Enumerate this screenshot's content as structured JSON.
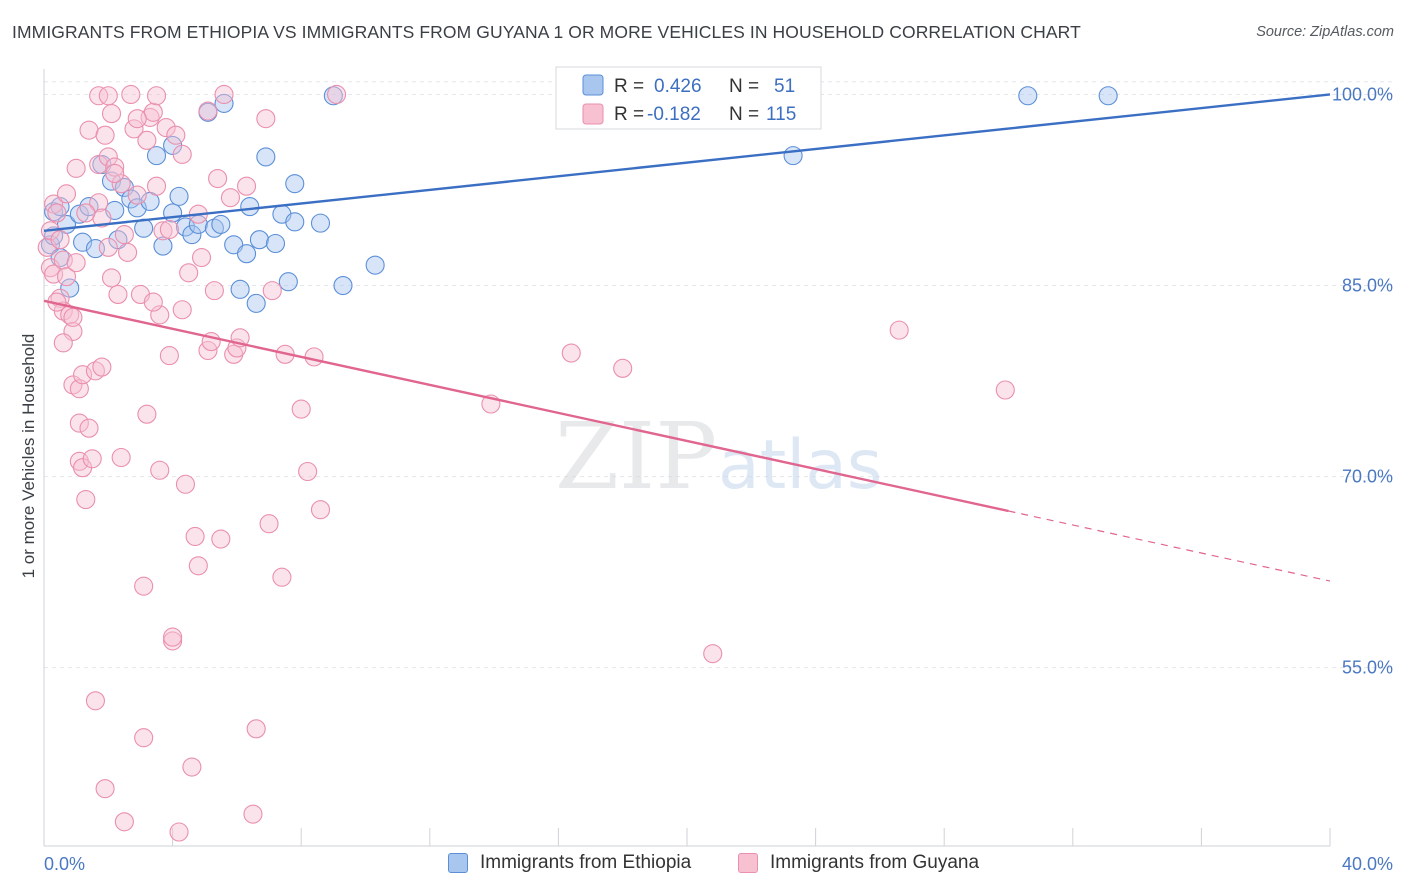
{
  "title": "IMMIGRANTS FROM ETHIOPIA VS IMMIGRANTS FROM GUYANA 1 OR MORE VEHICLES IN HOUSEHOLD CORRELATION CHART",
  "source": "Source: ZipAtlas.com",
  "watermark": {
    "zip": "ZIP",
    "atlas": "atlas"
  },
  "colors": {
    "ethiopia_fill": "#a9c6ef",
    "ethiopia_stroke": "#5b8fd8",
    "ethiopia_line": "#3b6fc4",
    "guyana_fill": "#f7c1d2",
    "guyana_stroke": "#ea8fae",
    "guyana_line": "#e0658f",
    "tick_text": "#4a78c2",
    "grid": "#e4e6ea"
  },
  "legend": {
    "r_label": "R =",
    "n_label": "N =",
    "ethiopia": {
      "r": "0.426",
      "n": "51"
    },
    "guyana": {
      "r": "-0.182",
      "n": "115"
    }
  },
  "bottom_legend": [
    "Immigrants from Ethiopia",
    "Immigrants from Guyana"
  ],
  "chart_data": {
    "type": "scatter",
    "xlabel": "",
    "ylabel": "1 or more Vehicles in Household",
    "xlim": [
      0,
      40
    ],
    "ylim": [
      41,
      102
    ],
    "x_tick_labels": [
      "0.0%",
      "40.0%"
    ],
    "y_ticks": [
      55,
      70,
      85,
      100
    ],
    "y_tick_labels": [
      "55.0%",
      "70.0%",
      "85.0%",
      "100.0%"
    ],
    "series": [
      {
        "name": "Immigrants from Ethiopia",
        "r": 0.426,
        "n": 51,
        "trend": {
          "x0": 0,
          "y0": 89.3,
          "x1": 40,
          "y1": 100.0
        },
        "points": [
          [
            0.2,
            88.2
          ],
          [
            0.3,
            90.8
          ],
          [
            0.5,
            91.2
          ],
          [
            0.7,
            89.8
          ],
          [
            0.8,
            84.8
          ],
          [
            1.1,
            90.6
          ],
          [
            1.2,
            88.4
          ],
          [
            1.4,
            91.2
          ],
          [
            1.6,
            87.9
          ],
          [
            1.8,
            94.5
          ],
          [
            2.1,
            93.2
          ],
          [
            2.2,
            90.9
          ],
          [
            2.5,
            92.7
          ],
          [
            2.7,
            91.8
          ],
          [
            2.9,
            91.1
          ],
          [
            3.1,
            89.5
          ],
          [
            3.3,
            91.6
          ],
          [
            3.5,
            95.2
          ],
          [
            3.7,
            88.1
          ],
          [
            4.0,
            90.7
          ],
          [
            4.0,
            96.0
          ],
          [
            4.2,
            92.0
          ],
          [
            4.4,
            89.6
          ],
          [
            4.6,
            89.0
          ],
          [
            4.8,
            89.8
          ],
          [
            5.1,
            98.6
          ],
          [
            5.3,
            89.5
          ],
          [
            5.5,
            89.8
          ],
          [
            5.6,
            99.3
          ],
          [
            5.9,
            88.2
          ],
          [
            6.1,
            84.7
          ],
          [
            6.3,
            87.5
          ],
          [
            6.4,
            91.2
          ],
          [
            6.6,
            83.6
          ],
          [
            6.7,
            88.6
          ],
          [
            6.9,
            95.1
          ],
          [
            7.2,
            88.3
          ],
          [
            7.4,
            90.6
          ],
          [
            7.6,
            85.3
          ],
          [
            7.8,
            90.0
          ],
          [
            7.8,
            93.0
          ],
          [
            8.6,
            89.9
          ],
          [
            9.0,
            99.9
          ],
          [
            9.3,
            85.0
          ],
          [
            10.3,
            86.6
          ],
          [
            23.3,
            95.2
          ],
          [
            30.6,
            99.9
          ],
          [
            33.1,
            99.9
          ],
          [
            0.3,
            88.9
          ],
          [
            2.3,
            88.6
          ],
          [
            0.5,
            87.2
          ]
        ]
      },
      {
        "name": "Immigrants from Guyana",
        "r": -0.182,
        "n": 115,
        "trend": {
          "x0": 0,
          "y0": 83.8,
          "x1": 30,
          "y1": 67.3,
          "dash_to_x": 40,
          "dash_to_y": 61.8
        },
        "points": [
          [
            0.1,
            88.0
          ],
          [
            0.2,
            89.3
          ],
          [
            0.2,
            86.4
          ],
          [
            0.3,
            91.4
          ],
          [
            0.3,
            85.9
          ],
          [
            0.4,
            90.7
          ],
          [
            0.5,
            88.6
          ],
          [
            0.5,
            84.0
          ],
          [
            0.6,
            87.0
          ],
          [
            0.6,
            83.0
          ],
          [
            0.7,
            92.2
          ],
          [
            0.7,
            85.7
          ],
          [
            0.8,
            82.7
          ],
          [
            0.9,
            81.4
          ],
          [
            0.9,
            77.2
          ],
          [
            1.0,
            94.2
          ],
          [
            1.1,
            76.9
          ],
          [
            1.1,
            74.2
          ],
          [
            1.1,
            71.2
          ],
          [
            1.2,
            78.0
          ],
          [
            1.2,
            70.7
          ],
          [
            1.3,
            68.2
          ],
          [
            1.4,
            97.2
          ],
          [
            1.4,
            73.8
          ],
          [
            1.5,
            71.4
          ],
          [
            1.6,
            78.3
          ],
          [
            1.6,
            52.4
          ],
          [
            1.7,
            91.5
          ],
          [
            1.7,
            94.5
          ],
          [
            1.8,
            90.3
          ],
          [
            1.8,
            78.6
          ],
          [
            1.9,
            45.5
          ],
          [
            1.9,
            96.8
          ],
          [
            2.0,
            95.1
          ],
          [
            2.0,
            88.0
          ],
          [
            2.1,
            98.5
          ],
          [
            2.1,
            85.6
          ],
          [
            2.2,
            94.3
          ],
          [
            2.3,
            84.3
          ],
          [
            2.4,
            93.0
          ],
          [
            2.4,
            71.5
          ],
          [
            2.5,
            89.0
          ],
          [
            2.5,
            42.9
          ],
          [
            2.7,
            100.0
          ],
          [
            2.8,
            97.3
          ],
          [
            2.9,
            92.1
          ],
          [
            3.0,
            84.3
          ],
          [
            3.1,
            61.4
          ],
          [
            3.2,
            96.4
          ],
          [
            3.2,
            74.9
          ],
          [
            3.3,
            98.2
          ],
          [
            3.4,
            98.6
          ],
          [
            3.5,
            92.8
          ],
          [
            3.6,
            82.7
          ],
          [
            3.6,
            70.5
          ],
          [
            3.7,
            89.3
          ],
          [
            3.8,
            97.4
          ],
          [
            3.9,
            79.5
          ],
          [
            4.0,
            57.1
          ],
          [
            4.0,
            57.4
          ],
          [
            4.1,
            96.8
          ],
          [
            4.2,
            42.1
          ],
          [
            4.3,
            95.3
          ],
          [
            4.4,
            69.4
          ],
          [
            4.6,
            47.2
          ],
          [
            4.7,
            65.3
          ],
          [
            4.8,
            63.0
          ],
          [
            4.9,
            87.2
          ],
          [
            5.1,
            79.9
          ],
          [
            5.2,
            80.6
          ],
          [
            5.3,
            84.6
          ],
          [
            5.4,
            93.4
          ],
          [
            5.5,
            65.1
          ],
          [
            5.6,
            100.0
          ],
          [
            5.8,
            91.9
          ],
          [
            5.9,
            79.6
          ],
          [
            6.0,
            80.1
          ],
          [
            6.3,
            92.8
          ],
          [
            6.5,
            43.5
          ],
          [
            6.6,
            50.2
          ],
          [
            6.9,
            98.1
          ],
          [
            7.0,
            66.3
          ],
          [
            7.1,
            84.6
          ],
          [
            7.4,
            62.1
          ],
          [
            7.5,
            79.6
          ],
          [
            8.0,
            75.3
          ],
          [
            8.2,
            70.4
          ],
          [
            8.4,
            79.4
          ],
          [
            8.6,
            67.4
          ],
          [
            9.1,
            100.0
          ],
          [
            13.9,
            75.7
          ],
          [
            16.4,
            79.7
          ],
          [
            18.0,
            78.5
          ],
          [
            20.8,
            56.1
          ],
          [
            26.6,
            81.5
          ],
          [
            29.9,
            76.8
          ],
          [
            0.4,
            83.7
          ],
          [
            0.9,
            82.5
          ],
          [
            1.3,
            90.7
          ],
          [
            2.2,
            93.8
          ],
          [
            2.6,
            87.6
          ],
          [
            3.5,
            99.9
          ],
          [
            3.1,
            49.5
          ],
          [
            3.9,
            89.4
          ],
          [
            4.5,
            86.0
          ],
          [
            4.8,
            90.6
          ],
          [
            5.1,
            98.7
          ],
          [
            6.1,
            80.9
          ],
          [
            3.4,
            83.7
          ],
          [
            1.7,
            99.9
          ],
          [
            2.9,
            98.1
          ],
          [
            0.6,
            80.5
          ],
          [
            4.3,
            83.1
          ],
          [
            1.0,
            86.8
          ],
          [
            2.0,
            99.9
          ]
        ]
      }
    ]
  }
}
